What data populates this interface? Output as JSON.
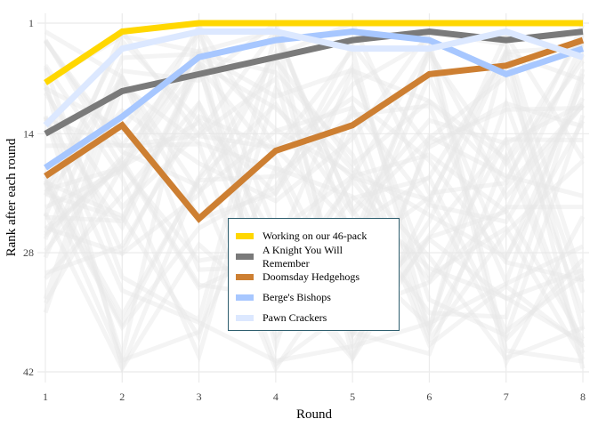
{
  "chart_data": {
    "type": "line",
    "title": "",
    "xlabel": "Round",
    "ylabel": "Rank after each round",
    "x": [
      1,
      2,
      3,
      4,
      5,
      6,
      7,
      8
    ],
    "xticks": [
      "1",
      "2",
      "3",
      "4",
      "5",
      "6",
      "7",
      "8"
    ],
    "yticks": [
      "1",
      "14",
      "28",
      "42"
    ],
    "ylim": [
      42,
      1
    ],
    "y_reversed": true,
    "grid": true,
    "legend": "center",
    "background_series_color": "#e6e6e6",
    "series": [
      {
        "name": "Working on our 46-pack",
        "color": "#FFD700",
        "values": [
          8,
          2,
          1,
          1,
          1,
          1,
          1,
          1
        ]
      },
      {
        "name": "A Knight You Will Remember",
        "color": "#7a7a7a",
        "values": [
          14,
          9,
          7,
          5,
          3,
          2,
          3,
          2
        ]
      },
      {
        "name": "Doomsday Hedgehogs",
        "color": "#CD7F32",
        "values": [
          19,
          13,
          24,
          16,
          13,
          7,
          6,
          3
        ]
      },
      {
        "name": "Berge's Bishops",
        "color": "#A7C7FF",
        "values": [
          18,
          12,
          5,
          3,
          2,
          3,
          7,
          4
        ]
      },
      {
        "name": "Pawn Crackers",
        "color": "#DCE8FF",
        "values": [
          13,
          4,
          2,
          2,
          4,
          4,
          2,
          5
        ]
      }
    ]
  }
}
